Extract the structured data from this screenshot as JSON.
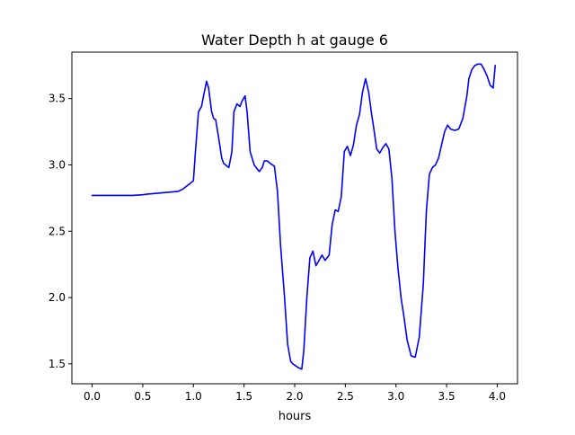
{
  "chart_data": {
    "type": "line",
    "title": "Water Depth h at gauge 6",
    "xlabel": "hours",
    "ylabel": "",
    "xlim": [
      -0.2,
      4.2
    ],
    "ylim": [
      1.35,
      3.85
    ],
    "xticks": [
      0.0,
      0.5,
      1.0,
      1.5,
      2.0,
      2.5,
      3.0,
      3.5,
      4.0
    ],
    "xtick_labels": [
      "0.0",
      "0.5",
      "1.0",
      "1.5",
      "2.0",
      "2.5",
      "3.0",
      "3.5",
      "4.0"
    ],
    "yticks": [
      1.5,
      2.0,
      2.5,
      3.0,
      3.5
    ],
    "ytick_labels": [
      "1.5",
      "2.0",
      "2.5",
      "3.0",
      "3.5"
    ],
    "grid": false,
    "series": [
      {
        "color": "#0000ff",
        "x": [
          0.0,
          0.2,
          0.4,
          0.5,
          0.55,
          0.7,
          0.85,
          0.9,
          0.95,
          1.0,
          1.02,
          1.05,
          1.08,
          1.1,
          1.13,
          1.15,
          1.18,
          1.2,
          1.22,
          1.25,
          1.28,
          1.3,
          1.35,
          1.38,
          1.4,
          1.43,
          1.46,
          1.48,
          1.51,
          1.53,
          1.56,
          1.6,
          1.65,
          1.68,
          1.7,
          1.73,
          1.76,
          1.8,
          1.83,
          1.86,
          1.9,
          1.93,
          1.96,
          1.98,
          2.0,
          2.04,
          2.07,
          2.09,
          2.12,
          2.15,
          2.18,
          2.21,
          2.24,
          2.27,
          2.3,
          2.34,
          2.37,
          2.4,
          2.43,
          2.46,
          2.49,
          2.52,
          2.55,
          2.58,
          2.61,
          2.64,
          2.67,
          2.7,
          2.73,
          2.76,
          2.78,
          2.81,
          2.84,
          2.87,
          2.9,
          2.93,
          2.96,
          2.99,
          3.02,
          3.05,
          3.08,
          3.11,
          3.15,
          3.19,
          3.23,
          3.27,
          3.3,
          3.33,
          3.36,
          3.39,
          3.42,
          3.45,
          3.48,
          3.51,
          3.54,
          3.58,
          3.62,
          3.66,
          3.7,
          3.72,
          3.75,
          3.78,
          3.81,
          3.84,
          3.87,
          3.9,
          3.93,
          3.96,
          3.98
        ],
        "y": [
          2.77,
          2.77,
          2.77,
          2.775,
          2.78,
          2.79,
          2.8,
          2.82,
          2.85,
          2.88,
          3.1,
          3.4,
          3.44,
          3.52,
          3.63,
          3.58,
          3.4,
          3.35,
          3.34,
          3.2,
          3.05,
          3.01,
          2.98,
          3.1,
          3.4,
          3.46,
          3.44,
          3.48,
          3.52,
          3.4,
          3.1,
          3.0,
          2.95,
          2.98,
          3.03,
          3.03,
          3.01,
          2.99,
          2.8,
          2.4,
          2.0,
          1.65,
          1.52,
          1.5,
          1.49,
          1.47,
          1.46,
          1.6,
          2.0,
          2.3,
          2.35,
          2.24,
          2.28,
          2.32,
          2.28,
          2.32,
          2.55,
          2.66,
          2.65,
          2.76,
          3.1,
          3.14,
          3.07,
          3.15,
          3.3,
          3.38,
          3.55,
          3.65,
          3.55,
          3.38,
          3.28,
          3.12,
          3.09,
          3.13,
          3.16,
          3.12,
          2.9,
          2.5,
          2.22,
          2.0,
          1.85,
          1.68,
          1.56,
          1.55,
          1.7,
          2.1,
          2.65,
          2.93,
          2.98,
          3.0,
          3.05,
          3.15,
          3.25,
          3.3,
          3.27,
          3.26,
          3.27,
          3.35,
          3.52,
          3.65,
          3.72,
          3.75,
          3.76,
          3.76,
          3.72,
          3.67,
          3.6,
          3.58,
          3.75
        ]
      }
    ]
  }
}
